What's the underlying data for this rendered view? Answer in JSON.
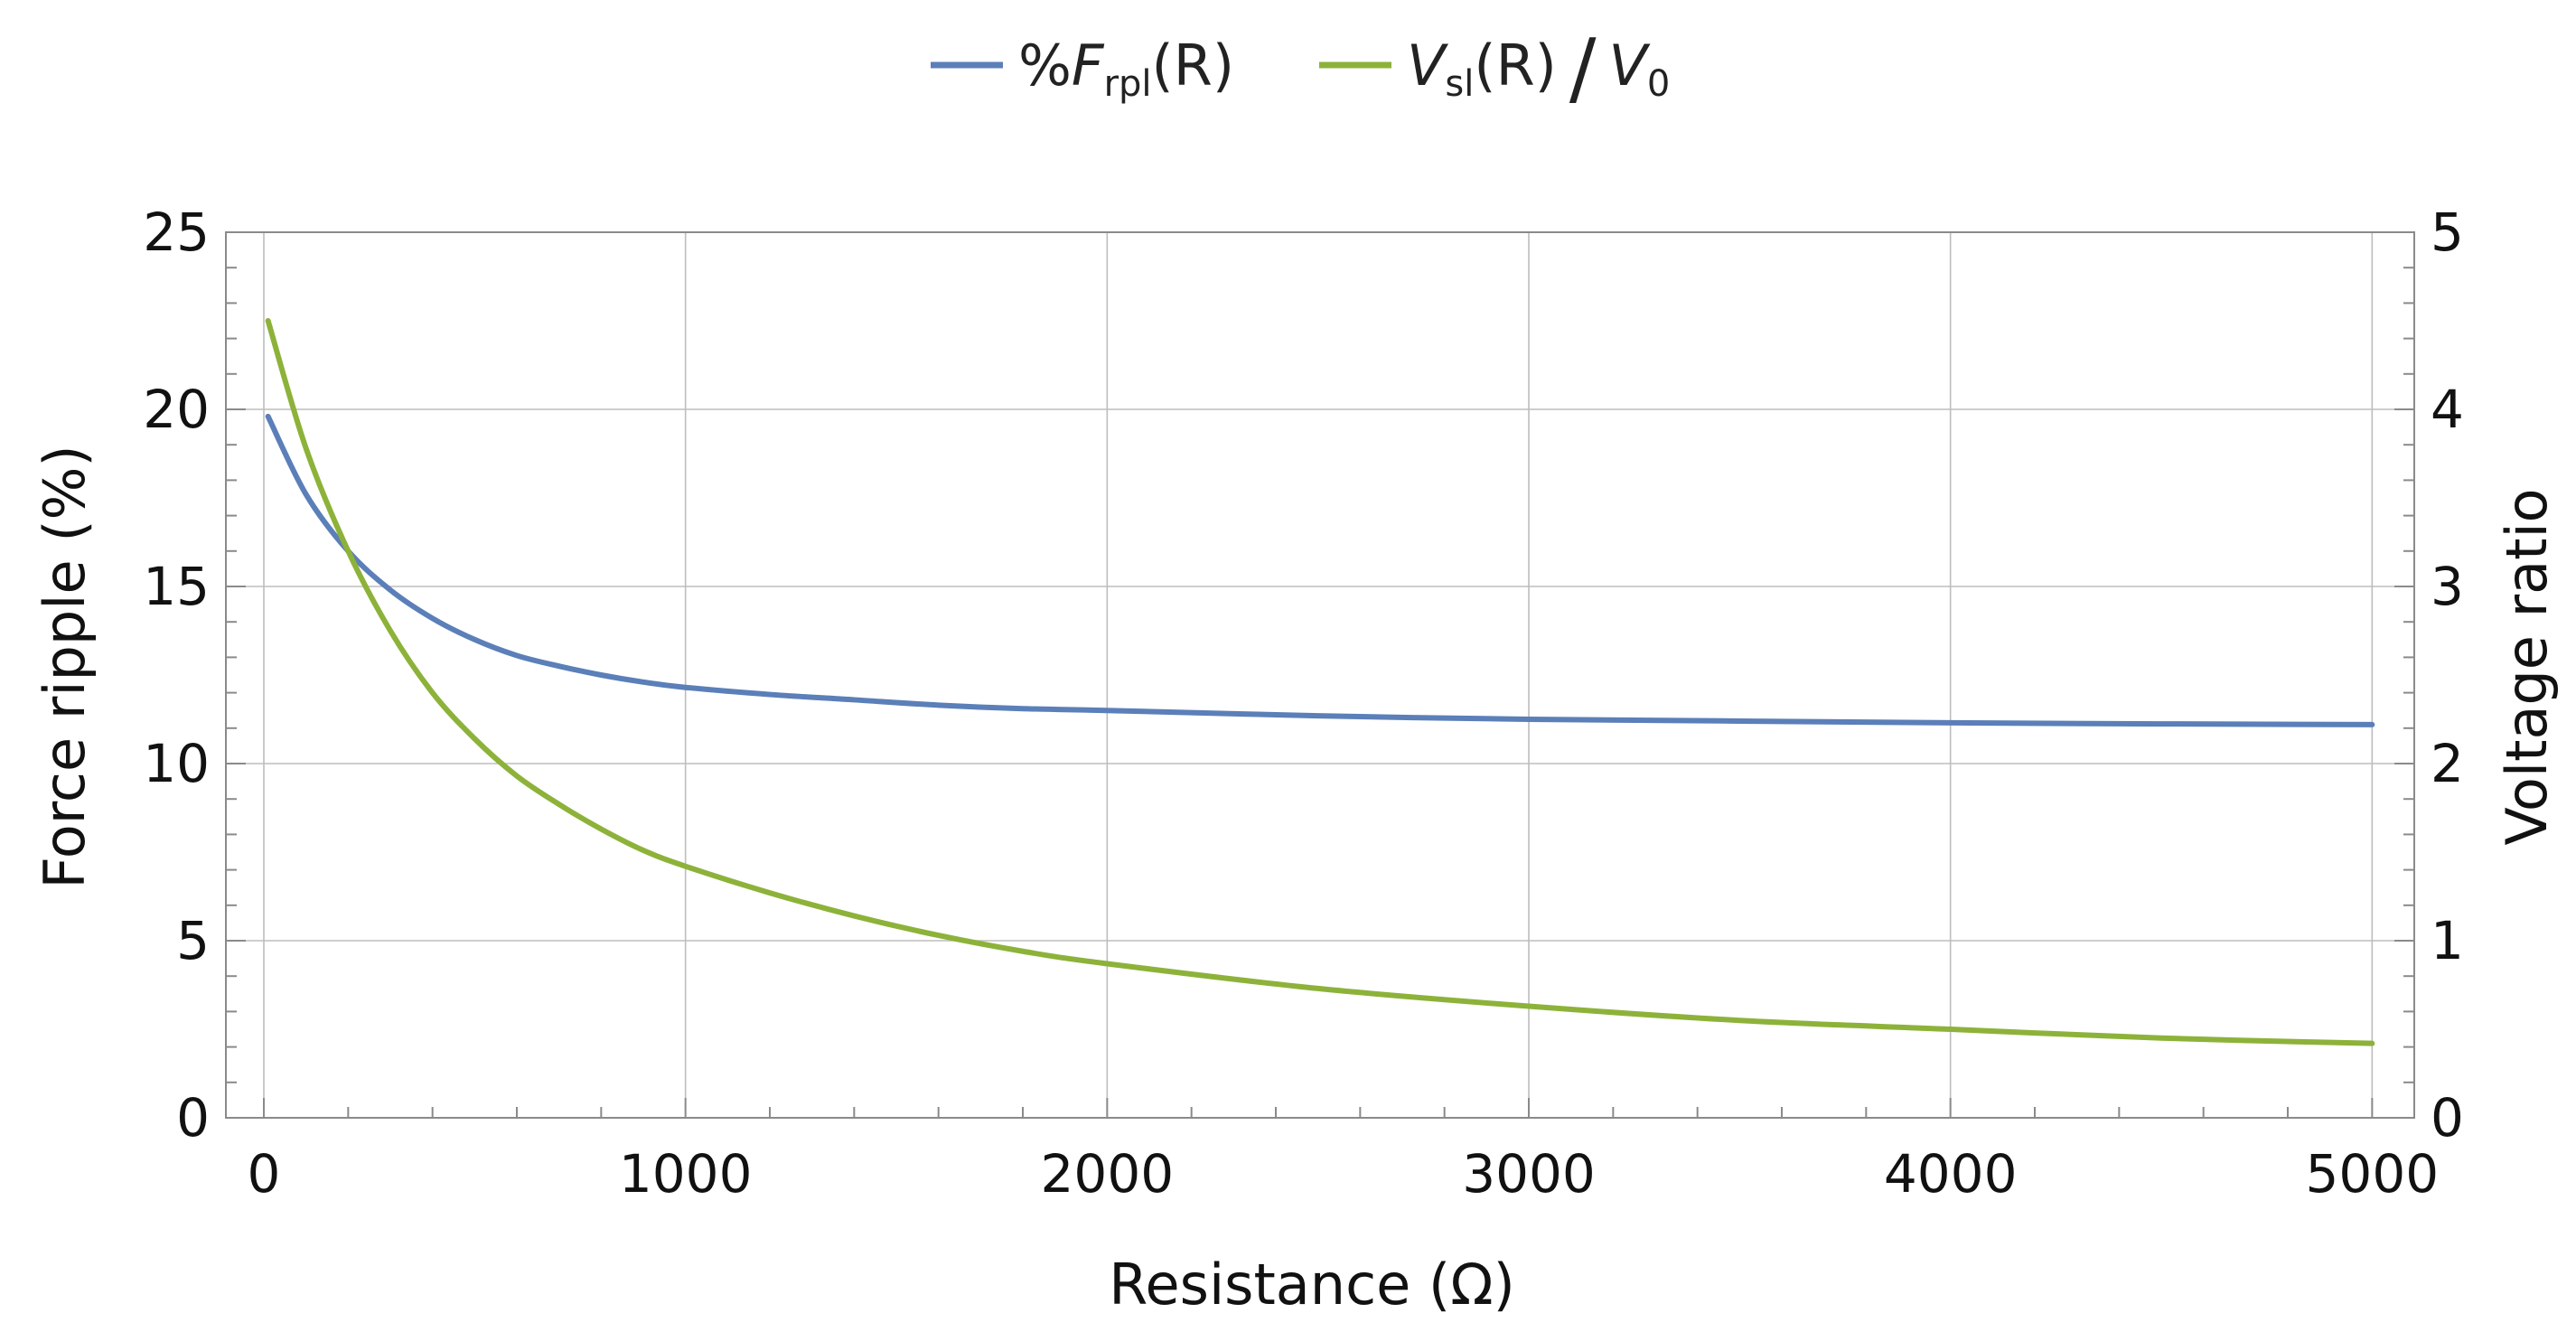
{
  "chart_data": {
    "type": "line",
    "title": "",
    "xlabel": "Resistance (Ω)",
    "ylabel_left": "Force ripple (%)",
    "ylabel_right": "Voltage ratio",
    "xlim": [
      -90,
      5100
    ],
    "ylim_left": [
      0,
      25
    ],
    "ylim_right": [
      0,
      5
    ],
    "grid": true,
    "legend_position": "top-center",
    "x_ticks": [
      0,
      1000,
      2000,
      3000,
      4000,
      5000
    ],
    "x_tick_labels": [
      "0",
      "1000",
      "2000",
      "3000",
      "4000",
      "5000"
    ],
    "y_left_ticks": [
      0,
      5,
      10,
      15,
      20,
      25
    ],
    "y_left_tick_labels": [
      "0",
      "5",
      "10",
      "15",
      "20",
      "25"
    ],
    "y_right_ticks": [
      0,
      1,
      2,
      3,
      4,
      5
    ],
    "y_right_tick_labels": [
      "0",
      "1",
      "2",
      "3",
      "4",
      "5"
    ],
    "series": [
      {
        "name": "%F_rpl(R)",
        "legend_prefix": "%",
        "legend_symbol": "F",
        "legend_sub": "rpl",
        "legend_suffix": "(R)",
        "axis": "left",
        "color": "#5b7fb8",
        "x": [
          10,
          100,
          200,
          300,
          400,
          500,
          600,
          700,
          800,
          900,
          1000,
          1200,
          1400,
          1600,
          1800,
          2000,
          2500,
          3000,
          3500,
          4000,
          4500,
          5000
        ],
        "y": [
          19.8,
          17.6,
          16.0,
          14.9,
          14.1,
          13.5,
          13.05,
          12.75,
          12.5,
          12.3,
          12.15,
          11.95,
          11.8,
          11.65,
          11.55,
          11.5,
          11.35,
          11.25,
          11.2,
          11.15,
          11.12,
          11.1
        ]
      },
      {
        "name": "V_sl(R) / V_0",
        "legend_symbol": "V",
        "legend_sub": "sl",
        "legend_mid": "(R)",
        "legend_divider": "/",
        "legend_denom": "V",
        "legend_denom_sub": "0",
        "axis": "right",
        "color": "#8db23a",
        "x": [
          10,
          100,
          200,
          300,
          400,
          500,
          600,
          700,
          800,
          900,
          1000,
          1200,
          1400,
          1600,
          1800,
          2000,
          2500,
          3000,
          3500,
          4000,
          4500,
          5000
        ],
        "y": [
          4.5,
          3.78,
          3.2,
          2.75,
          2.4,
          2.14,
          1.93,
          1.77,
          1.63,
          1.51,
          1.42,
          1.27,
          1.14,
          1.03,
          0.94,
          0.87,
          0.73,
          0.63,
          0.55,
          0.5,
          0.45,
          0.42
        ]
      }
    ]
  }
}
